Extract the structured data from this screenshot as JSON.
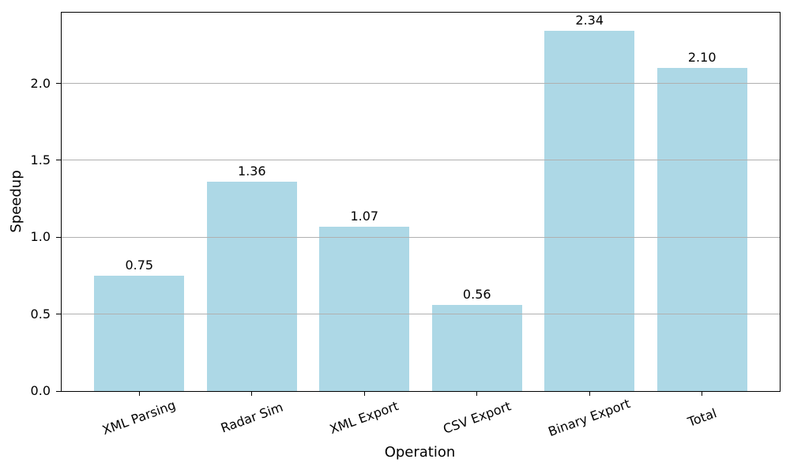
{
  "chart_data": {
    "type": "bar",
    "categories": [
      "XML Parsing",
      "Radar Sim",
      "XML Export",
      "CSV Export",
      "Binary Export",
      "Total"
    ],
    "values": [
      0.75,
      1.36,
      1.07,
      0.56,
      2.34,
      2.1
    ],
    "value_labels": [
      "0.75",
      "1.36",
      "1.07",
      "0.56",
      "2.34",
      "2.10"
    ],
    "title": "",
    "xlabel": "Operation",
    "ylabel": "Speedup",
    "ylim": [
      0,
      2.46
    ],
    "yticks": [
      0.0,
      0.5,
      1.0,
      1.5,
      2.0
    ],
    "ytick_labels": [
      "0.0",
      "0.5",
      "1.0",
      "1.5",
      "2.0"
    ],
    "grid": "horizontal-over-bars",
    "legend": null,
    "bar_color": "#ADD8E6",
    "grid_color": "#B0B0B0",
    "axis_color": "#000000",
    "text_color": "#000000",
    "background_color": "#FFFFFF"
  }
}
